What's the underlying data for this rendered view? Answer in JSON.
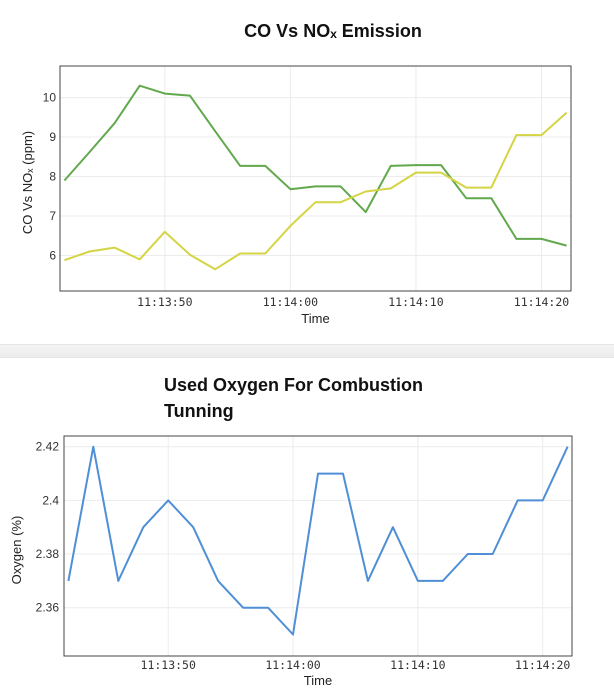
{
  "chart_data": [
    {
      "type": "line",
      "title": "CO Vs NOₓ Emission",
      "xlabel": "Time",
      "ylabel": "CO Vs NOₓ (ppm)",
      "x_ticks": [
        "11:13:50",
        "11:14:00",
        "11:14:10",
        "11:14:20"
      ],
      "y_ticks": [
        6,
        7,
        8,
        9,
        10
      ],
      "ylim": [
        5.1,
        10.8
      ],
      "x": [
        "11:13:42",
        "11:13:44",
        "11:13:46",
        "11:13:48",
        "11:13:50",
        "11:13:52",
        "11:13:54",
        "11:13:56",
        "11:13:58",
        "11:14:00",
        "11:14:02",
        "11:14:04",
        "11:14:06",
        "11:14:08",
        "11:14:10",
        "11:14:12",
        "11:14:14",
        "11:14:16",
        "11:14:18",
        "11:14:20",
        "11:14:22"
      ],
      "series": [
        {
          "color": "#62a84d",
          "values": [
            7.9,
            8.62,
            9.35,
            10.3,
            10.1,
            10.05,
            9.15,
            8.27,
            8.27,
            7.68,
            7.75,
            7.75,
            7.1,
            8.27,
            8.29,
            8.29,
            7.45,
            7.45,
            6.42,
            6.42,
            6.25
          ]
        },
        {
          "color": "#d4d445",
          "values": [
            5.88,
            6.1,
            6.2,
            5.9,
            6.6,
            6.02,
            5.65,
            6.05,
            6.05,
            6.75,
            7.35,
            7.35,
            7.62,
            7.7,
            8.1,
            8.1,
            7.72,
            7.72,
            9.05,
            9.05,
            9.62
          ]
        }
      ],
      "grid": true,
      "legend": false
    },
    {
      "type": "line",
      "title": "Used Oxygen For Combustion Tunning",
      "xlabel": "Time",
      "ylabel": "Oxygen (%)",
      "x_ticks": [
        "11:13:50",
        "11:14:00",
        "11:14:10",
        "11:14:20"
      ],
      "y_ticks": [
        2.36,
        2.38,
        2.4,
        2.42
      ],
      "ylim": [
        2.342,
        2.424
      ],
      "x": [
        "11:13:42",
        "11:13:44",
        "11:13:46",
        "11:13:48",
        "11:13:50",
        "11:13:52",
        "11:13:54",
        "11:13:56",
        "11:13:58",
        "11:14:00",
        "11:14:02",
        "11:14:04",
        "11:14:06",
        "11:14:08",
        "11:14:10",
        "11:14:12",
        "11:14:14",
        "11:14:16",
        "11:14:18",
        "11:14:20",
        "11:14:22"
      ],
      "series": [
        {
          "color": "#4f8fd6",
          "values": [
            2.37,
            2.42,
            2.37,
            2.39,
            2.4,
            2.39,
            2.37,
            2.36,
            2.36,
            2.35,
            2.41,
            2.41,
            2.37,
            2.39,
            2.37,
            2.37,
            2.38,
            2.38,
            2.4,
            2.4,
            2.42
          ]
        }
      ],
      "grid": true,
      "legend": false
    }
  ]
}
